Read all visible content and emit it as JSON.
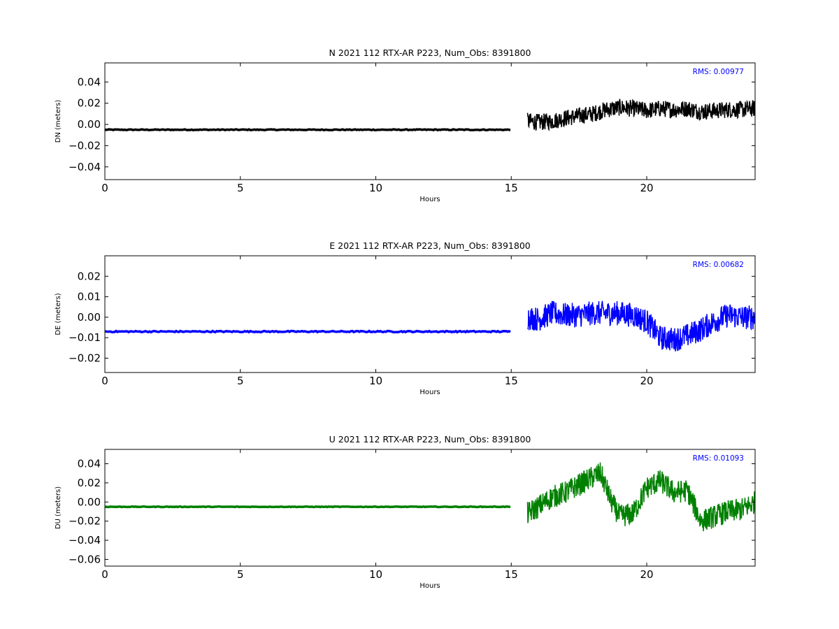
{
  "chart_data": [
    {
      "type": "line",
      "title": "N 2021 112 RTX-AR  P223, Num_Obs: 8391800",
      "xlabel": "Hours",
      "ylabel": "DN (meters)",
      "xlim": [
        0,
        24
      ],
      "ylim": [
        -0.052,
        0.058
      ],
      "xticks": [
        0,
        5,
        10,
        15,
        20
      ],
      "yticks": [
        -0.04,
        -0.02,
        0.0,
        0.02,
        0.04
      ],
      "grid": false,
      "annotation": "RMS:  0.00977",
      "annotation_color": "#0000ff",
      "series": [
        {
          "color": "#000000",
          "segments": [
            {
              "x": [
                0,
                15.0
              ],
              "y": [
                -0.005,
                -0.005
              ],
              "noise": 0.0004
            },
            {
              "x": [
                15.6,
                16.0,
                16.5,
                17.0,
                17.5,
                18.0,
                18.5,
                19.0,
                19.5,
                20.0,
                20.5,
                21.0,
                21.5,
                22.0,
                22.5,
                23.0,
                23.5,
                24.0
              ],
              "y": [
                0.003,
                0.002,
                0.003,
                0.006,
                0.008,
                0.01,
                0.014,
                0.016,
                0.015,
                0.013,
                0.015,
                0.014,
                0.015,
                0.012,
                0.013,
                0.014,
                0.014,
                0.015
              ],
              "noise": 0.008
            }
          ]
        }
      ]
    },
    {
      "type": "line",
      "title": "E 2021 112 RTX-AR  P223, Num_Obs: 8391800",
      "xlabel": "Hours",
      "ylabel": "DE (meters)",
      "xlim": [
        0,
        24
      ],
      "ylim": [
        -0.027,
        0.03
      ],
      "xticks": [
        0,
        5,
        10,
        15,
        20
      ],
      "yticks": [
        -0.02,
        -0.01,
        0.0,
        0.01,
        0.02
      ],
      "grid": false,
      "annotation": "RMS:  0.00682",
      "annotation_color": "#0000ff",
      "series": [
        {
          "color": "#0000ff",
          "segments": [
            {
              "x": [
                0,
                15.0
              ],
              "y": [
                -0.007,
                -0.007
              ],
              "noise": 0.0003
            },
            {
              "x": [
                15.6,
                16.0,
                16.5,
                17.0,
                17.5,
                18.0,
                18.5,
                19.0,
                19.5,
                20.0,
                20.5,
                21.0,
                21.5,
                22.0,
                22.5,
                23.0,
                23.5,
                24.0
              ],
              "y": [
                0.0,
                -0.001,
                0.002,
                0.001,
                0.001,
                0.002,
                0.002,
                0.002,
                0.001,
                -0.002,
                -0.01,
                -0.011,
                -0.009,
                -0.006,
                -0.002,
                0.001,
                0.0,
                0.0
              ],
              "noise": 0.006
            }
          ]
        }
      ]
    },
    {
      "type": "line",
      "title": "U 2021 112 RTX-AR  P223, Num_Obs: 8391800",
      "xlabel": "Hours",
      "ylabel": "DU (meters)",
      "xlim": [
        0,
        24
      ],
      "ylim": [
        -0.067,
        0.055
      ],
      "xticks": [
        0,
        5,
        10,
        15,
        20
      ],
      "yticks": [
        -0.06,
        -0.04,
        -0.02,
        0.0,
        0.02,
        0.04
      ],
      "grid": false,
      "annotation": "RMS:  0.01093",
      "annotation_color": "#0000ff",
      "series": [
        {
          "color": "#008000",
          "segments": [
            {
              "x": [
                0,
                15.0
              ],
              "y": [
                -0.005,
                -0.005
              ],
              "noise": 0.0003
            },
            {
              "x": [
                15.6,
                16.0,
                16.5,
                17.0,
                17.5,
                18.0,
                18.3,
                18.7,
                19.0,
                19.5,
                20.0,
                20.5,
                21.0,
                21.5,
                22.0,
                22.5,
                23.0,
                23.5,
                24.0
              ],
              "y": [
                -0.012,
                -0.005,
                0.005,
                0.01,
                0.018,
                0.026,
                0.03,
                0.0,
                -0.015,
                -0.012,
                0.015,
                0.022,
                0.01,
                0.012,
                -0.02,
                -0.015,
                -0.01,
                -0.008,
                0.0
              ],
              "noise": 0.012
            }
          ]
        }
      ]
    }
  ]
}
